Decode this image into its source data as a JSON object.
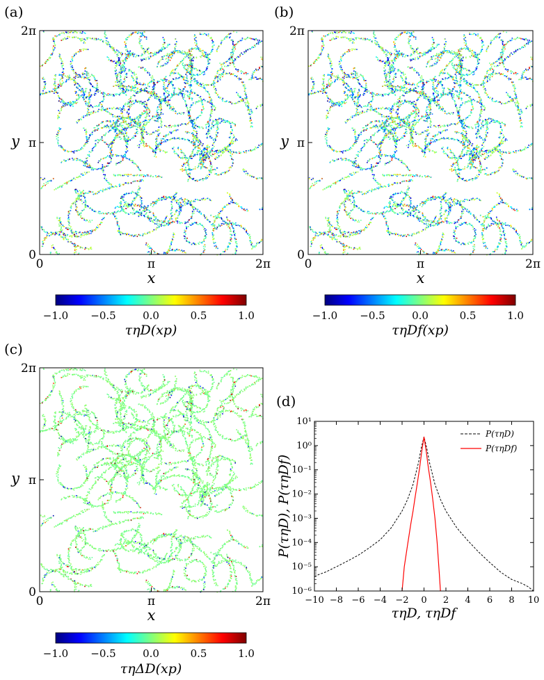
{
  "panels": {
    "a": {
      "label": "(a)",
      "xlabel": "x",
      "ylabel": "y",
      "xticks": [
        "0",
        "π",
        "2π"
      ],
      "yticks": [
        "0",
        "π",
        "2π"
      ],
      "colorbar_label": "τηD(xp)",
      "colorbar_ticks": [
        "−1.0",
        "−0.5",
        "0.0",
        "0.5",
        "1.0"
      ],
      "seed": 11
    },
    "b": {
      "label": "(b)",
      "xlabel": "x",
      "ylabel": "y",
      "xticks": [
        "0",
        "π",
        "2π"
      ],
      "yticks": [
        "0",
        "π",
        "2π"
      ],
      "colorbar_label": "τηDf(xp)",
      "colorbar_ticks": [
        "−1.0",
        "−0.5",
        "0.0",
        "0.5",
        "1.0"
      ],
      "seed": 11
    },
    "c": {
      "label": "(c)",
      "xlabel": "x",
      "ylabel": "y",
      "xticks": [
        "0",
        "π",
        "2π"
      ],
      "yticks": [
        "0",
        "π",
        "2π"
      ],
      "colorbar_label": "τηΔD(xp)",
      "colorbar_ticks": [
        "−1.0",
        "−0.5",
        "0.0",
        "0.5",
        "1.0"
      ],
      "seed": 11
    },
    "d": {
      "label": "(d)"
    }
  },
  "colormap": [
    "#00007f",
    "#0000ff",
    "#007fff",
    "#00ffff",
    "#7fff7f",
    "#ffff00",
    "#ff7f00",
    "#ff0000",
    "#7f0000"
  ],
  "chart_data": [
    {
      "type": "heatmap",
      "panel": "a",
      "x_range": [
        "0",
        "2π"
      ],
      "y_range": [
        "0",
        "2π"
      ],
      "color_range": [
        -1.0,
        1.0
      ],
      "colorbar_label": "τηD(xp)"
    },
    {
      "type": "heatmap",
      "panel": "b",
      "x_range": [
        "0",
        "2π"
      ],
      "y_range": [
        "0",
        "2π"
      ],
      "color_range": [
        -1.0,
        1.0
      ],
      "colorbar_label": "τηDf(xp)"
    },
    {
      "type": "heatmap",
      "panel": "c",
      "x_range": [
        "0",
        "2π"
      ],
      "y_range": [
        "0",
        "2π"
      ],
      "color_range": [
        -1.0,
        1.0
      ],
      "colorbar_label": "τηΔD(xp)"
    },
    {
      "type": "line",
      "panel": "d",
      "xlabel": "τηD, τηDf",
      "ylabel": "P(τηD), P(τηDf)",
      "xlim": [
        -10,
        10
      ],
      "ylim": [
        1e-06,
        10
      ],
      "yscale": "log",
      "xticks": [
        "−10",
        "−8",
        "−6",
        "−4",
        "−2",
        "0",
        "2",
        "4",
        "6",
        "8",
        "10"
      ],
      "yticks": [
        "10⁻⁶",
        "10⁻⁵",
        "10⁻⁴",
        "10⁻³",
        "10⁻²",
        "10⁻¹",
        "10⁰",
        "10¹"
      ],
      "legend_position": "top-right",
      "series": [
        {
          "name": "P(τηD)",
          "color": "#000000",
          "dash": "dashed",
          "x": [
            -10,
            -9.5,
            -9,
            -8,
            -7,
            -6,
            -5,
            -4,
            -3,
            -2,
            -1.5,
            -1,
            -0.5,
            -0.25,
            0,
            0.25,
            0.5,
            1,
            1.5,
            2,
            3,
            4,
            5,
            6,
            7,
            8,
            9,
            9.5,
            10
          ],
          "y": [
            4e-06,
            5e-06,
            6e-06,
            1e-05,
            1.7e-05,
            3e-05,
            6e-05,
            0.00013,
            0.0004,
            0.002,
            0.006,
            0.025,
            0.2,
            0.8,
            2.3,
            0.8,
            0.2,
            0.025,
            0.006,
            0.002,
            0.0004,
            0.00012,
            4e-05,
            1.5e-05,
            6e-06,
            3e-06,
            2e-06,
            1.5e-06,
            1e-06
          ]
        },
        {
          "name": "P(τηDf)",
          "color": "#ff0000",
          "dash": "solid",
          "x": [
            -2.0,
            -1.8,
            -1.5,
            -1.2,
            -1.0,
            -0.8,
            -0.6,
            -0.4,
            -0.2,
            0,
            0.2,
            0.4,
            0.6,
            0.8,
            1.0,
            1.2,
            1.4,
            1.5
          ],
          "y": [
            1e-06,
            1e-05,
            8e-05,
            0.0006,
            0.002,
            0.008,
            0.03,
            0.12,
            0.6,
            2.3,
            0.6,
            0.12,
            0.03,
            0.006,
            0.001,
            0.0001,
            5e-06,
            1e-06
          ]
        }
      ]
    }
  ]
}
